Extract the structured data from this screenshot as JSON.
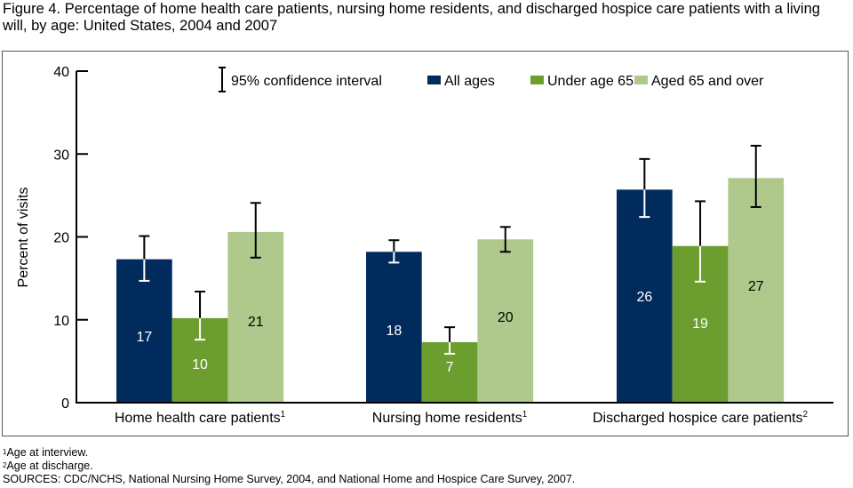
{
  "title": "Figure 4. Percentage of home health care patients, nursing home residents, and discharged hospice care patients with a living will, by age: United States, 2004 and 2007",
  "legend": {
    "ci_label": "95% confidence interval",
    "items": [
      "All ages",
      "Under age 65",
      "Aged 65 and over"
    ]
  },
  "colors": {
    "all_ages": "#002b5c",
    "under_65": "#6b9e2f",
    "aged_65_over": "#afc98d",
    "axis": "#000000"
  },
  "footnotes": {
    "note1_sup": "1",
    "note1": "Age at interview.",
    "note2_sup": "2",
    "note2": "Age at discharge.",
    "sources": "SOURCES: CDC/NCHS, National Nursing Home Survey, 2004, and National Home and Hospice Care Survey, 2007."
  },
  "chart_data": {
    "type": "bar",
    "title": "Figure 4. Percentage of home health care patients, nursing home residents, and discharged hospice care patients with a living will, by age: United States, 2004 and 2007",
    "xlabel": "",
    "ylabel": "Percent of visits",
    "ylim": [
      0,
      40
    ],
    "yticks": [
      0,
      10,
      20,
      30,
      40
    ],
    "grid": false,
    "legend_position": "top-right",
    "categories": [
      "Home health care patients",
      "Nursing home residents",
      "Discharged hospice care patients"
    ],
    "category_superscripts": [
      "1",
      "1",
      "2"
    ],
    "series": [
      {
        "name": "All ages",
        "values": [
          17.3,
          18.2,
          25.7
        ],
        "labels": [
          "17",
          "18",
          "26"
        ],
        "ci_low": [
          14.7,
          16.9,
          22.4
        ],
        "ci_high": [
          20.1,
          19.6,
          29.4
        ]
      },
      {
        "name": "Under age 65",
        "values": [
          10.2,
          7.3,
          18.9
        ],
        "labels": [
          "10",
          "7",
          "19"
        ],
        "ci_low": [
          7.6,
          5.9,
          14.6
        ],
        "ci_high": [
          13.4,
          9.1,
          24.3
        ]
      },
      {
        "name": "Aged 65 and over",
        "values": [
          20.6,
          19.7,
          27.1
        ],
        "labels": [
          "21",
          "20",
          "27"
        ],
        "ci_low": [
          17.5,
          18.2,
          23.6
        ],
        "ci_high": [
          24.1,
          21.2,
          31.0
        ]
      }
    ]
  }
}
